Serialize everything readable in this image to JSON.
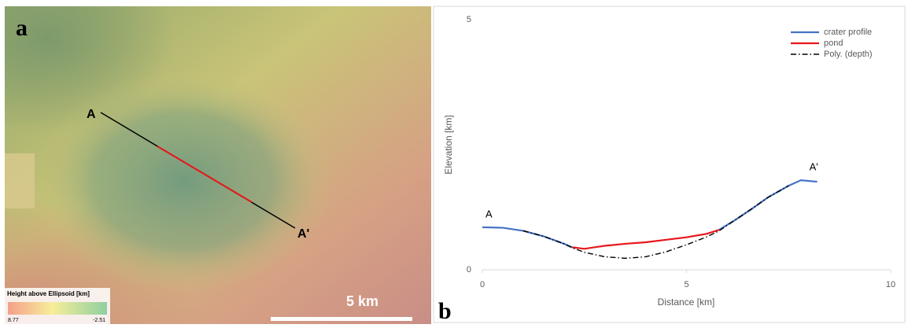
{
  "map": {
    "panel_label": "a",
    "point_a": "A",
    "point_a_prime": "A'",
    "scale_bar": "5 km",
    "legend_title": "Height above Ellipsoid [km]",
    "legend_max": 8.77,
    "legend_min": -2.51
  },
  "chart_data": {
    "type": "line",
    "panel_label": "b",
    "xlabel": "Distance [km]",
    "ylabel": "Elevation [km]",
    "annotations": [
      "A",
      "A'"
    ],
    "x": [
      0,
      0.5,
      1,
      1.5,
      2,
      2.2,
      2.5,
      3,
      3.5,
      4,
      4.5,
      5,
      5.5,
      5.8,
      6.2,
      6.6,
      7,
      7.5,
      7.8,
      8.2
    ],
    "series": [
      {
        "name": "crater profile",
        "color": "#4472c4",
        "dash": "solid",
        "values": [
          0.85,
          0.84,
          0.78,
          0.67,
          0.52,
          0.45,
          null,
          null,
          null,
          null,
          null,
          null,
          null,
          0.8,
          1.0,
          1.22,
          1.45,
          1.68,
          1.79,
          1.76
        ]
      },
      {
        "name": "pond",
        "color": "#e8161b",
        "dash": "solid",
        "values": [
          null,
          null,
          null,
          null,
          null,
          0.45,
          0.42,
          0.48,
          0.52,
          0.55,
          0.6,
          0.65,
          0.72,
          0.8,
          null,
          null,
          null,
          null,
          null,
          null
        ]
      },
      {
        "name": "Poly. (depth)",
        "color": "#000000",
        "dash": "dashdot",
        "values": [
          null,
          null,
          0.78,
          0.67,
          0.52,
          0.44,
          0.35,
          0.26,
          0.23,
          0.26,
          0.36,
          0.5,
          0.66,
          0.78,
          1.0,
          1.22,
          1.45,
          1.68,
          null,
          null
        ]
      }
    ],
    "xlim": [
      0,
      10
    ],
    "xticks": [
      0,
      5,
      10
    ],
    "ylim": [
      0,
      5
    ],
    "yticks": [
      0,
      5
    ],
    "grid": false,
    "legend": "top-right"
  }
}
